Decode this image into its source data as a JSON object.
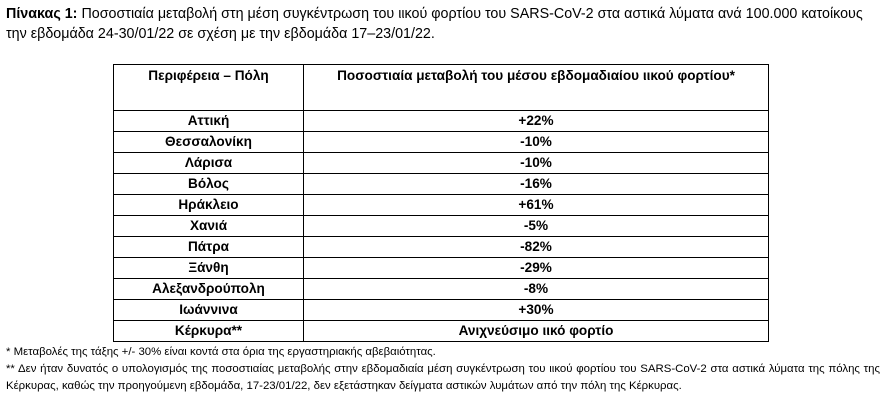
{
  "caption": {
    "label": "Πίνακας 1:",
    "text": "Ποσοστιαία μεταβολή στη μέση συγκέντρωση του ιικού φορτίου του SARS-CoV-2 στα αστικά λύματα ανά 100.000 κατοίκους την εβδομάδα 24-30/01/22 σε σχέση με την εβδομάδα 17–23/01/22."
  },
  "table": {
    "headers": [
      "Περιφέρεια – Πόλη",
      "Ποσοστιαία μεταβολή του μέσου εβδομαδιαίου ιικού φορτίου*"
    ],
    "rows": [
      [
        "Αττική",
        "+22%"
      ],
      [
        "Θεσσαλονίκη",
        "-10%"
      ],
      [
        "Λάρισα",
        "-10%"
      ],
      [
        "Βόλος",
        "-16%"
      ],
      [
        "Ηράκλειο",
        "+61%"
      ],
      [
        "Χανιά",
        "-5%"
      ],
      [
        "Πάτρα",
        "-82%"
      ],
      [
        "Ξάνθη",
        "-29%"
      ],
      [
        "Αλεξανδρούπολη",
        "-8%"
      ],
      [
        "Ιωάννινα",
        "+30%"
      ],
      [
        "Κέρκυρα**",
        "Ανιχνεύσιμο ιικό φορτίο"
      ]
    ]
  },
  "footnotes": [
    "* Μεταβολές της τάξης +/- 30% είναι κοντά στα όρια της εργαστηριακής αβεβαιότητας.",
    "** Δεν ήταν δυνατός ο υπολογισμός της ποσοστιαίας μεταβολής στην εβδομαδιαία μέση συγκέντρωση του ιικού φορτίου του SARS-CoV-2 στα αστικά λύματα της πόλης της Κέρκυρας, καθώς την προηγούμενη εβδομάδα, 17-23/01/22, δεν εξετάστηκαν δείγματα αστικών λυμάτων από την πόλη της Κέρκυρας."
  ]
}
